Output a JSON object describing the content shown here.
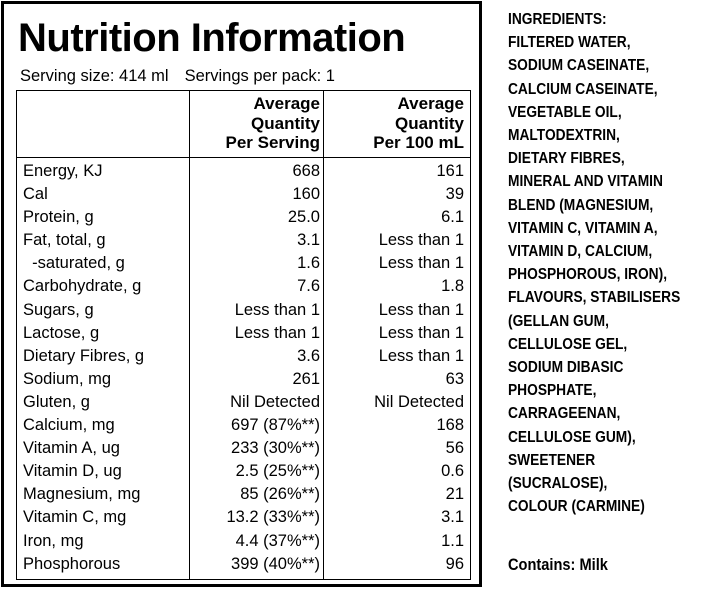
{
  "title": "Nutrition Information",
  "serving_size": "Serving size: 414 ml",
  "servings_per_pack": "Servings per pack: 1",
  "column_headers": {
    "per_serving": [
      "Average",
      "Quantity",
      "Per Serving"
    ],
    "per_100ml": [
      "Average",
      "Quantity",
      "Per 100 mL"
    ]
  },
  "rows": [
    {
      "label": "Energy, KJ",
      "per_serving": "668",
      "per_100ml": "161"
    },
    {
      "label": "Cal",
      "per_serving": "160",
      "per_100ml": "39"
    },
    {
      "label": "Protein, g",
      "per_serving": "25.0",
      "per_100ml": "6.1"
    },
    {
      "label": "Fat, total, g",
      "per_serving": "3.1",
      "per_100ml": "Less than 1"
    },
    {
      "label": "  -saturated, g",
      "per_serving": "1.6",
      "per_100ml": "Less than 1"
    },
    {
      "label": "Carbohydrate, g",
      "per_serving": "7.6",
      "per_100ml": "1.8"
    },
    {
      "label": "Sugars, g",
      "per_serving": "Less than 1",
      "per_100ml": "Less than 1"
    },
    {
      "label": "Lactose, g",
      "per_serving": "Less than 1",
      "per_100ml": "Less than 1"
    },
    {
      "label": "Dietary Fibres, g",
      "per_serving": "3.6",
      "per_100ml": "Less than 1"
    },
    {
      "label": "Sodium, mg",
      "per_serving": "261",
      "per_100ml": "63"
    },
    {
      "label": "Gluten, g",
      "per_serving": "Nil Detected",
      "per_100ml": "Nil Detected"
    },
    {
      "label": "Calcium, mg",
      "per_serving": "697 (87%**)",
      "per_100ml": "168"
    },
    {
      "label": "Vitamin A, ug",
      "per_serving": "233 (30%**)",
      "per_100ml": "56"
    },
    {
      "label": "Vitamin D, ug",
      "per_serving": "2.5 (25%**)",
      "per_100ml": "0.6"
    },
    {
      "label": "Magnesium, mg",
      "per_serving": "85 (26%**)",
      "per_100ml": "21"
    },
    {
      "label": "Vitamin C, mg",
      "per_serving": "13.2 (33%**)",
      "per_100ml": "3.1"
    },
    {
      "label": "Iron, mg",
      "per_serving": "4.4 (37%**)",
      "per_100ml": "1.1"
    },
    {
      "label": "Phosphorous",
      "per_serving": "399 (40%**)",
      "per_100ml": "96"
    }
  ],
  "ingredients_lines": [
    "INGREDIENTS:",
    "FILTERED WATER,",
    "SODIUM CASEINATE,",
    "CALCIUM CASEINATE,",
    "VEGETABLE OIL,",
    "MALTODEXTRIN,",
    "DIETARY FIBRES,",
    "MINERAL AND VITAMIN",
    "BLEND (MAGNESIUM,",
    "VITAMIN C, VITAMIN A,",
    "VITAMIN D, CALCIUM,",
    "PHOSPHOROUS, IRON),",
    "FLAVOURS, STABILISERS",
    "(GELLAN GUM,",
    "CELLULOSE GEL,",
    "SODIUM DIBASIC",
    "PHOSPHATE,",
    "CARRAGEENAN,",
    "CELLULOSE GUM),",
    "SWEETENER",
    "(SUCRALOSE),",
    "COLOUR (CARMINE)"
  ],
  "contains": "Contains: Milk"
}
